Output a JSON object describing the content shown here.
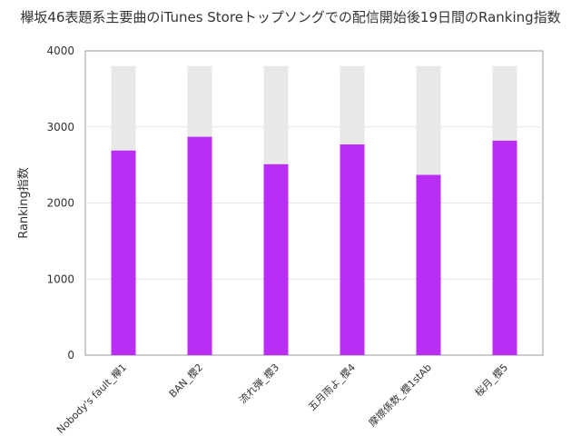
{
  "chart_data": {
    "type": "bar",
    "title": "欅坂46表題系主要曲のiTunes Storeトップソングでの配信開始後19日間のRanking指数",
    "xlabel": "",
    "ylabel": "Ranking指数",
    "ylim": [
      0,
      4000
    ],
    "yticks": [
      0,
      1000,
      2000,
      3000,
      4000
    ],
    "categories": [
      "Nobody's fault_欅1",
      "BAN_櫻2",
      "流れ弾_櫻3",
      "五月雨よ_櫻4",
      "摩擦係数_櫻1stAb",
      "桜月_櫻5"
    ],
    "series": [
      {
        "values": [
          2690,
          2870,
          2510,
          2770,
          2370,
          2820
        ],
        "color": "#b92df5"
      },
      {
        "values": [
          3800,
          3800,
          3800,
          3800,
          3800,
          3800
        ],
        "color": "#e8e8e8"
      }
    ],
    "grid": true,
    "legend": "none"
  }
}
